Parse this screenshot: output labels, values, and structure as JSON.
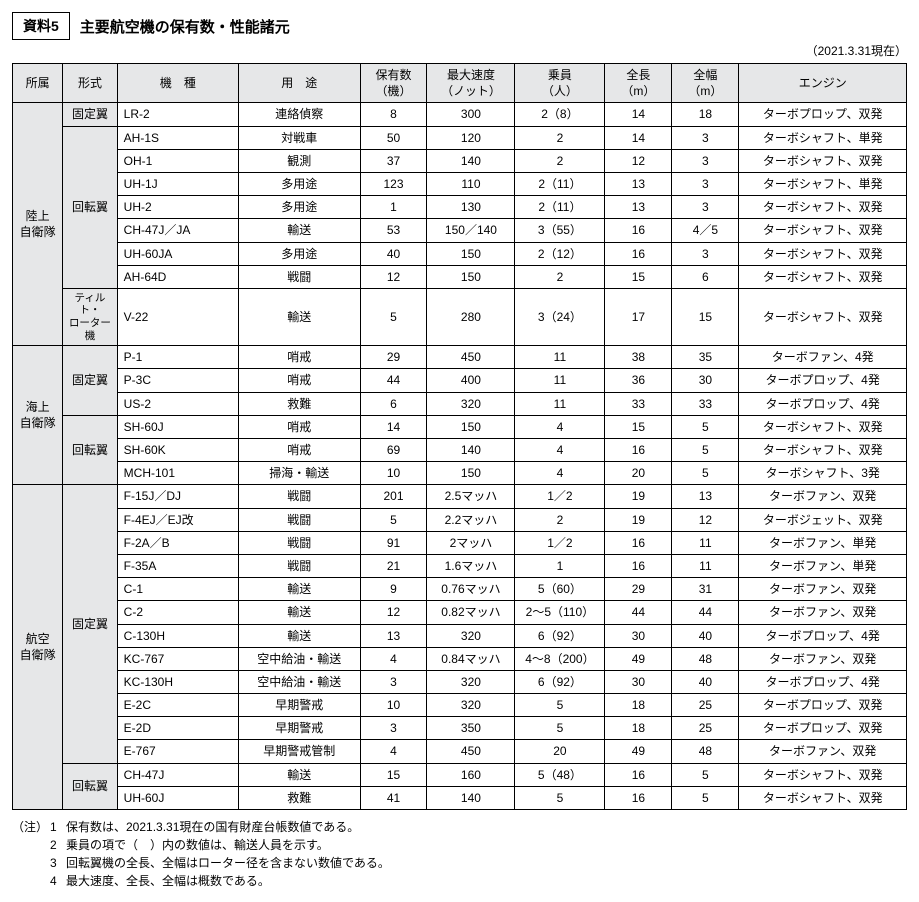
{
  "header": {
    "ref": "資料5",
    "title": "主要航空機の保有数・性能諸元",
    "asof": "（2021.3.31現在）"
  },
  "columns": {
    "org": "所属",
    "type": "形式",
    "model": "機　種",
    "use": "用　途",
    "qty": "保有数\n（機）",
    "speed": "最大速度\n（ノット）",
    "crew": "乗員\n（人）",
    "len": "全長\n（m）",
    "wid": "全幅\n（m）",
    "engine": "エンジン"
  },
  "orgs": [
    {
      "name": "陸上\n自衛隊",
      "types": [
        {
          "name": "固定翼",
          "rows": [
            {
              "model": "LR-2",
              "use": "連絡偵察",
              "qty": "8",
              "speed": "300",
              "crew": "2（8）",
              "len": "14",
              "wid": "18",
              "engine": "ターボプロップ、双発"
            }
          ]
        },
        {
          "name": "回転翼",
          "rows": [
            {
              "model": "AH-1S",
              "use": "対戦車",
              "qty": "50",
              "speed": "120",
              "crew": "2",
              "len": "14",
              "wid": "3",
              "engine": "ターボシャフト、単発"
            },
            {
              "model": "OH-1",
              "use": "観測",
              "qty": "37",
              "speed": "140",
              "crew": "2",
              "len": "12",
              "wid": "3",
              "engine": "ターボシャフト、双発"
            },
            {
              "model": "UH-1J",
              "use": "多用途",
              "qty": "123",
              "speed": "110",
              "crew": "2（11）",
              "len": "13",
              "wid": "3",
              "engine": "ターボシャフト、単発"
            },
            {
              "model": "UH-2",
              "use": "多用途",
              "qty": "1",
              "speed": "130",
              "crew": "2（11）",
              "len": "13",
              "wid": "3",
              "engine": "ターボシャフト、双発"
            },
            {
              "model": "CH-47J／JA",
              "use": "輸送",
              "qty": "53",
              "speed": "150／140",
              "crew": "3（55）",
              "len": "16",
              "wid": "4／5",
              "engine": "ターボシャフト、双発"
            },
            {
              "model": "UH-60JA",
              "use": "多用途",
              "qty": "40",
              "speed": "150",
              "crew": "2（12）",
              "len": "16",
              "wid": "3",
              "engine": "ターボシャフト、双発"
            },
            {
              "model": "AH-64D",
              "use": "戦闘",
              "qty": "12",
              "speed": "150",
              "crew": "2",
              "len": "15",
              "wid": "6",
              "engine": "ターボシャフト、双発"
            }
          ]
        },
        {
          "name": "ティルト・\nローター機",
          "small": true,
          "rows": [
            {
              "model": "V-22",
              "use": "輸送",
              "qty": "5",
              "speed": "280",
              "crew": "3（24）",
              "len": "17",
              "wid": "15",
              "engine": "ターボシャフト、双発"
            }
          ]
        }
      ]
    },
    {
      "name": "海上\n自衛隊",
      "types": [
        {
          "name": "固定翼",
          "rows": [
            {
              "model": "P-1",
              "use": "哨戒",
              "qty": "29",
              "speed": "450",
              "crew": "11",
              "len": "38",
              "wid": "35",
              "engine": "ターボファン、4発"
            },
            {
              "model": "P-3C",
              "use": "哨戒",
              "qty": "44",
              "speed": "400",
              "crew": "11",
              "len": "36",
              "wid": "30",
              "engine": "ターボプロップ、4発"
            },
            {
              "model": "US-2",
              "use": "救難",
              "qty": "6",
              "speed": "320",
              "crew": "11",
              "len": "33",
              "wid": "33",
              "engine": "ターボプロップ、4発"
            }
          ]
        },
        {
          "name": "回転翼",
          "rows": [
            {
              "model": "SH-60J",
              "use": "哨戒",
              "qty": "14",
              "speed": "150",
              "crew": "4",
              "len": "15",
              "wid": "5",
              "engine": "ターボシャフト、双発"
            },
            {
              "model": "SH-60K",
              "use": "哨戒",
              "qty": "69",
              "speed": "140",
              "crew": "4",
              "len": "16",
              "wid": "5",
              "engine": "ターボシャフト、双発"
            },
            {
              "model": "MCH-101",
              "use": "掃海・輸送",
              "qty": "10",
              "speed": "150",
              "crew": "4",
              "len": "20",
              "wid": "5",
              "engine": "ターボシャフト、3発"
            }
          ]
        }
      ]
    },
    {
      "name": "航空\n自衛隊",
      "types": [
        {
          "name": "固定翼",
          "rows": [
            {
              "model": "F-15J／DJ",
              "use": "戦闘",
              "qty": "201",
              "speed": "2.5マッハ",
              "crew": "1／2",
              "len": "19",
              "wid": "13",
              "engine": "ターボファン、双発"
            },
            {
              "model": "F-4EJ／EJ改",
              "use": "戦闘",
              "qty": "5",
              "speed": "2.2マッハ",
              "crew": "2",
              "len": "19",
              "wid": "12",
              "engine": "ターボジェット、双発"
            },
            {
              "model": "F-2A／B",
              "use": "戦闘",
              "qty": "91",
              "speed": "2マッハ",
              "crew": "1／2",
              "len": "16",
              "wid": "11",
              "engine": "ターボファン、単発"
            },
            {
              "model": "F-35A",
              "use": "戦闘",
              "qty": "21",
              "speed": "1.6マッハ",
              "crew": "1",
              "len": "16",
              "wid": "11",
              "engine": "ターボファン、単発"
            },
            {
              "model": "C-1",
              "use": "輸送",
              "qty": "9",
              "speed": "0.76マッハ",
              "crew": "5（60）",
              "len": "29",
              "wid": "31",
              "engine": "ターボファン、双発"
            },
            {
              "model": "C-2",
              "use": "輸送",
              "qty": "12",
              "speed": "0.82マッハ",
              "crew": "2～5（110）",
              "len": "44",
              "wid": "44",
              "engine": "ターボファン、双発"
            },
            {
              "model": "C-130H",
              "use": "輸送",
              "qty": "13",
              "speed": "320",
              "crew": "6（92）",
              "len": "30",
              "wid": "40",
              "engine": "ターボプロップ、4発"
            },
            {
              "model": "KC-767",
              "use": "空中給油・輸送",
              "qty": "4",
              "speed": "0.84マッハ",
              "crew": "4～8（200）",
              "len": "49",
              "wid": "48",
              "engine": "ターボファン、双発"
            },
            {
              "model": "KC-130H",
              "use": "空中給油・輸送",
              "qty": "3",
              "speed": "320",
              "crew": "6（92）",
              "len": "30",
              "wid": "40",
              "engine": "ターボプロップ、4発"
            },
            {
              "model": "E-2C",
              "use": "早期警戒",
              "qty": "10",
              "speed": "320",
              "crew": "5",
              "len": "18",
              "wid": "25",
              "engine": "ターボプロップ、双発"
            },
            {
              "model": "E-2D",
              "use": "早期警戒",
              "qty": "3",
              "speed": "350",
              "crew": "5",
              "len": "18",
              "wid": "25",
              "engine": "ターボプロップ、双発"
            },
            {
              "model": "E-767",
              "use": "早期警戒管制",
              "qty": "4",
              "speed": "450",
              "crew": "20",
              "len": "49",
              "wid": "48",
              "engine": "ターボファン、双発"
            }
          ]
        },
        {
          "name": "回転翼",
          "rows": [
            {
              "model": "CH-47J",
              "use": "輸送",
              "qty": "15",
              "speed": "160",
              "crew": "5（48）",
              "len": "16",
              "wid": "5",
              "engine": "ターボシャフト、双発"
            },
            {
              "model": "UH-60J",
              "use": "救難",
              "qty": "41",
              "speed": "140",
              "crew": "5",
              "len": "16",
              "wid": "5",
              "engine": "ターボシャフト、双発"
            }
          ]
        }
      ]
    }
  ],
  "notes": {
    "label": "（注）",
    "items": [
      "保有数は、2021.3.31現在の国有財産台帳数値である。",
      "乗員の項で（　）内の数値は、輸送人員を示す。",
      "回転翼機の全長、全幅はローター径を含まない数値である。",
      "最大速度、全長、全幅は概数である。"
    ]
  }
}
